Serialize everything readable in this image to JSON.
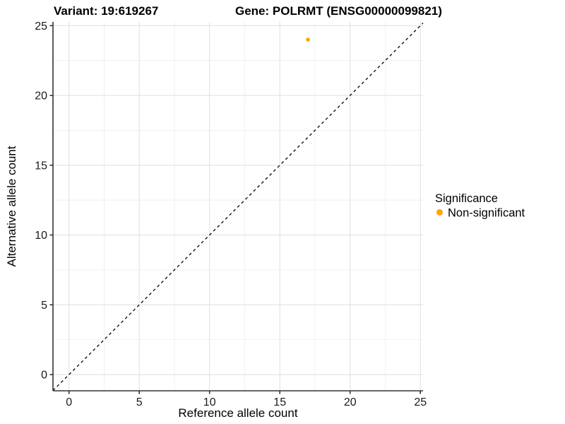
{
  "chart_data": {
    "type": "scatter",
    "titles": {
      "left": "Variant: 19:619267",
      "right": "Gene: POLRMT (ENSG00000099821)"
    },
    "xlabel": "Reference allele count",
    "ylabel": "Alternative allele count",
    "xlim": [
      -1.14,
      25.19
    ],
    "ylim": [
      -1.16,
      25.27
    ],
    "x_ticks": [
      0,
      5,
      10,
      15,
      20,
      25
    ],
    "y_ticks": [
      0,
      5,
      10,
      15,
      20,
      25
    ],
    "x_minor_ticks": [
      2.5,
      7.5,
      12.5,
      17.5,
      22.5
    ],
    "y_minor_ticks": [
      2.5,
      7.5,
      12.5,
      17.5,
      22.5
    ],
    "grid": true,
    "identity_line": {
      "style": "dashed",
      "color": "#000000",
      "from": -1.14,
      "to": 25.19
    },
    "series": [
      {
        "name": "Non-significant",
        "color": "#FFA500",
        "point_radius": 2.8,
        "points": [
          {
            "x": 17,
            "y": 24
          }
        ]
      }
    ],
    "legend": {
      "title": "Significance",
      "position": "right",
      "items": [
        {
          "label": "Non-significant",
          "color": "#FFA500"
        }
      ]
    }
  }
}
